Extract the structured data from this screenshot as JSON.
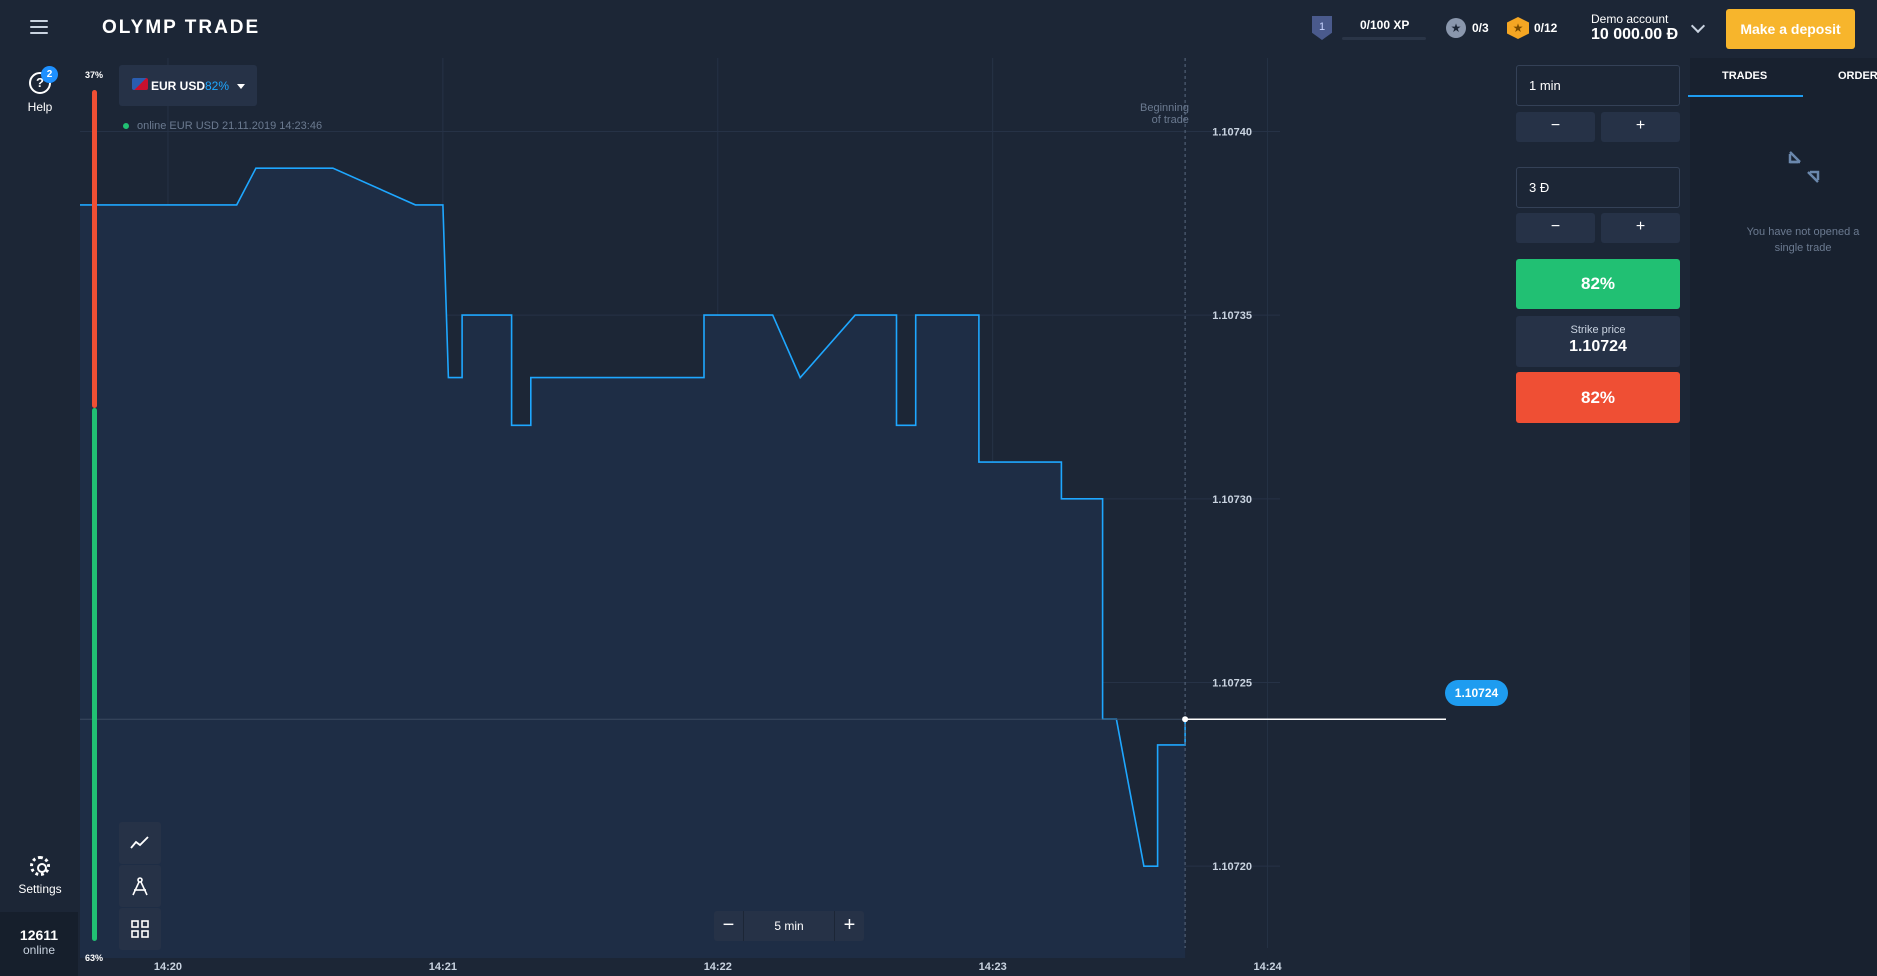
{
  "header": {
    "logo": "OLYMP TRADE",
    "xp_level": "1",
    "xp": "0/100 XP",
    "stars": "0/3",
    "coins": "0/12",
    "account_label": "Demo account",
    "balance": "10 000.00 Đ",
    "deposit_label": "Make a deposit"
  },
  "sidebar": {
    "help_label": "Help",
    "help_badge": "2",
    "settings_label": "Settings",
    "online_count": "12611",
    "online_label": "online"
  },
  "chart": {
    "sentiment_top": "37%",
    "sentiment_bottom": "63%",
    "pair": "EUR USD",
    "pair_payout": "82%",
    "status_text": "online EUR USD  21.11.2019 14:23:46",
    "beginning_label_1": "Beginning",
    "beginning_label_2": "of trade",
    "current_price": "1.10724",
    "zoom_label": "5 min"
  },
  "chart_data": {
    "type": "line",
    "ylim": [
      1.107175,
      1.10742
    ],
    "yticks": [
      1.1074,
      1.10735,
      1.1073,
      1.10725,
      1.1072
    ],
    "ytick_labels": [
      "1.10740",
      "1.10735",
      "1.10730",
      "1.10725",
      "1.10720"
    ],
    "xtick_labels": [
      "14:20",
      "14:21",
      "14:22",
      "14:23",
      "14:24"
    ],
    "xtick_minutes": [
      0,
      1,
      2,
      3,
      4
    ],
    "xlim_minutes": [
      -0.32,
      4.7
    ],
    "trade_start_minute": 3.7,
    "current_price": 1.10724,
    "series": [
      {
        "points": [
          [
            -0.32,
            1.10738
          ],
          [
            -0.2,
            1.10738
          ],
          [
            0.25,
            1.10738
          ],
          [
            0.32,
            1.10739
          ],
          [
            0.6,
            1.10739
          ],
          [
            0.9,
            1.10738
          ],
          [
            1.0,
            1.10738
          ],
          [
            1.02,
            1.107333
          ],
          [
            1.07,
            1.107333
          ],
          [
            1.07,
            1.10735
          ],
          [
            1.25,
            1.10735
          ],
          [
            1.25,
            1.10732
          ],
          [
            1.32,
            1.10732
          ],
          [
            1.32,
            1.107333
          ],
          [
            1.95,
            1.107333
          ],
          [
            1.95,
            1.10735
          ],
          [
            2.2,
            1.10735
          ],
          [
            2.3,
            1.107333
          ],
          [
            2.5,
            1.10735
          ],
          [
            2.65,
            1.10735
          ],
          [
            2.65,
            1.10732
          ],
          [
            2.72,
            1.10732
          ],
          [
            2.72,
            1.10735
          ],
          [
            2.95,
            1.10735
          ],
          [
            2.95,
            1.10731
          ],
          [
            3.05,
            1.10731
          ],
          [
            3.05,
            1.10731
          ],
          [
            3.25,
            1.10731
          ],
          [
            3.25,
            1.1073
          ],
          [
            3.4,
            1.1073
          ],
          [
            3.4,
            1.10724
          ],
          [
            3.45,
            1.10724
          ],
          [
            3.5,
            1.10722
          ],
          [
            3.55,
            1.1072
          ],
          [
            3.6,
            1.1072
          ],
          [
            3.6,
            1.107233
          ],
          [
            3.7,
            1.107233
          ],
          [
            3.7,
            1.10724
          ]
        ]
      }
    ],
    "grid": true
  },
  "trade_panel": {
    "duration": "1 min",
    "amount": "3 Đ",
    "minus": "−",
    "plus": "+",
    "up_payout": "82%",
    "strike_label": "Strike price",
    "strike_price": "1.10724",
    "down_payout": "82%"
  },
  "right_panel": {
    "tab_trades": "TRADES",
    "tab_orders": "ORDERS",
    "empty_text": "You have not opened a single trade"
  },
  "colors": {
    "background": "#1c2636",
    "line": "#1ea7ff",
    "up": "#21c073",
    "down": "#ef4f34",
    "deposit": "#f7b52c"
  }
}
